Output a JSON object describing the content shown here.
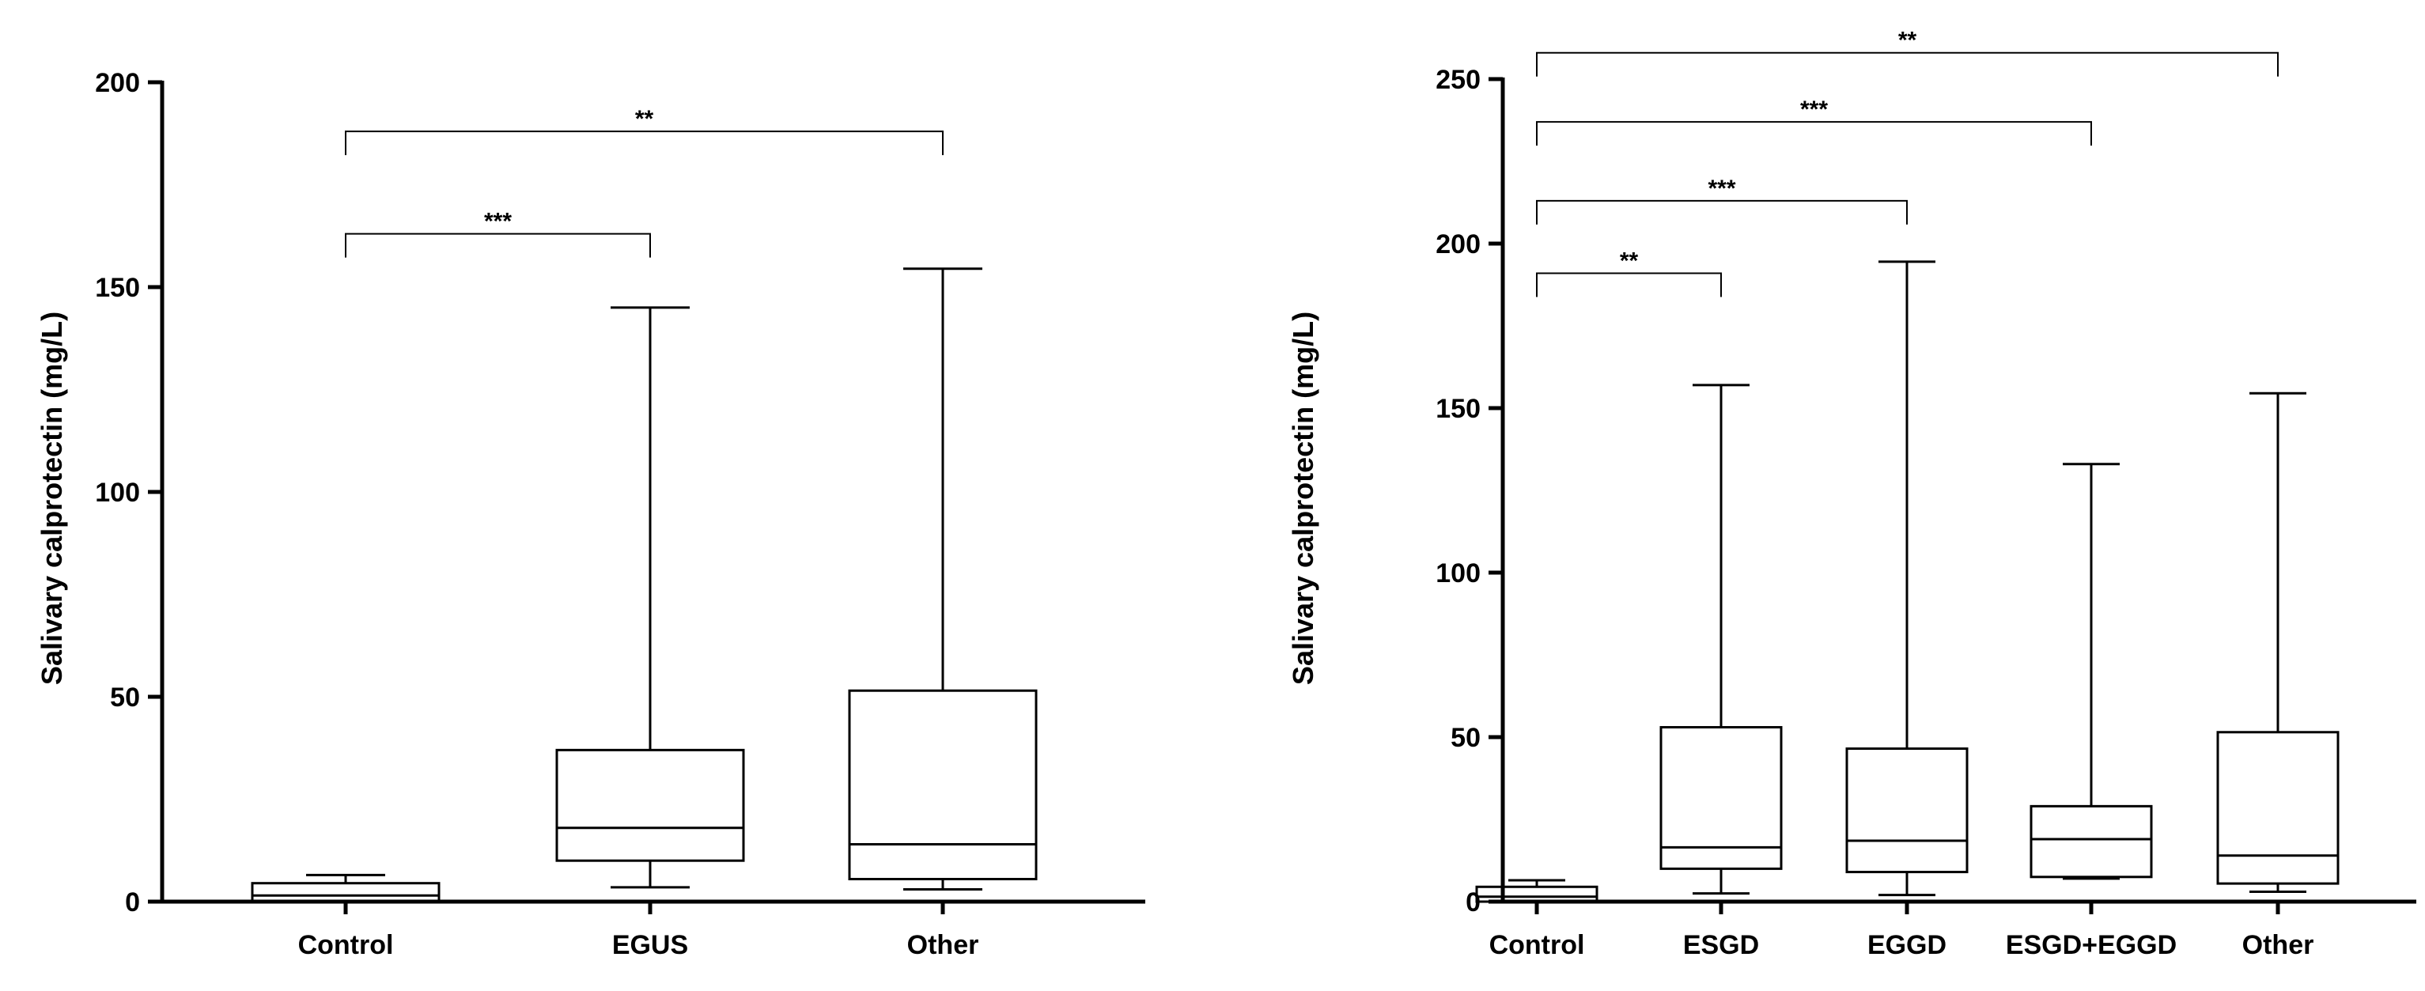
{
  "chart_data": [
    {
      "type": "box",
      "title": "",
      "xlabel": "",
      "ylabel": "Salivary calprotectin (mg/L)",
      "ylim": [
        0,
        200
      ],
      "yticks": [
        0,
        50,
        100,
        150,
        200
      ],
      "categories": [
        "Control",
        "EGUS",
        "Other"
      ],
      "boxes": [
        {
          "category": "Control",
          "min": 0,
          "q1": 0,
          "median": 1.5,
          "q3": 4.5,
          "max": 6.5
        },
        {
          "category": "EGUS",
          "min": 3.5,
          "q1": 10,
          "median": 18,
          "q3": 37,
          "max": 145
        },
        {
          "category": "Other",
          "min": 3,
          "q1": 5.5,
          "median": 14,
          "q3": 51.5,
          "max": 154.5
        }
      ],
      "significance": [
        {
          "from": "Control",
          "to": "EGUS",
          "label": "***",
          "y": 163
        },
        {
          "from": "Control",
          "to": "Other",
          "label": "**",
          "y": 188
        }
      ]
    },
    {
      "type": "box",
      "title": "",
      "xlabel": "",
      "ylabel": "Salivary calprotectin (mg/L)",
      "ylim": [
        0,
        250
      ],
      "yticks": [
        0,
        50,
        100,
        150,
        200,
        250
      ],
      "categories": [
        "Control",
        "ESGD",
        "EGGD",
        "ESGD+EGGD",
        "Other"
      ],
      "boxes": [
        {
          "category": "Control",
          "min": 0,
          "q1": 0,
          "median": 1.5,
          "q3": 4.5,
          "max": 6.5
        },
        {
          "category": "ESGD",
          "min": 2.5,
          "q1": 10,
          "median": 16.5,
          "q3": 53,
          "max": 157
        },
        {
          "category": "EGGD",
          "min": 2,
          "q1": 9,
          "median": 18.5,
          "q3": 46.5,
          "max": 194.5
        },
        {
          "category": "ESGD+EGGD",
          "min": 7,
          "q1": 7.5,
          "median": 19,
          "q3": 29,
          "max": 133
        },
        {
          "category": "Other",
          "min": 3,
          "q1": 5.5,
          "median": 14,
          "q3": 51.5,
          "max": 154.5
        }
      ],
      "significance": [
        {
          "from": "Control",
          "to": "ESGD",
          "label": "**",
          "y": 191
        },
        {
          "from": "Control",
          "to": "EGGD",
          "label": "***",
          "y": 213
        },
        {
          "from": "Control",
          "to": "ESGD+EGGD",
          "label": "***",
          "y": 237
        },
        {
          "from": "Control",
          "to": "Other",
          "label": "**",
          "y": 258
        }
      ]
    }
  ]
}
